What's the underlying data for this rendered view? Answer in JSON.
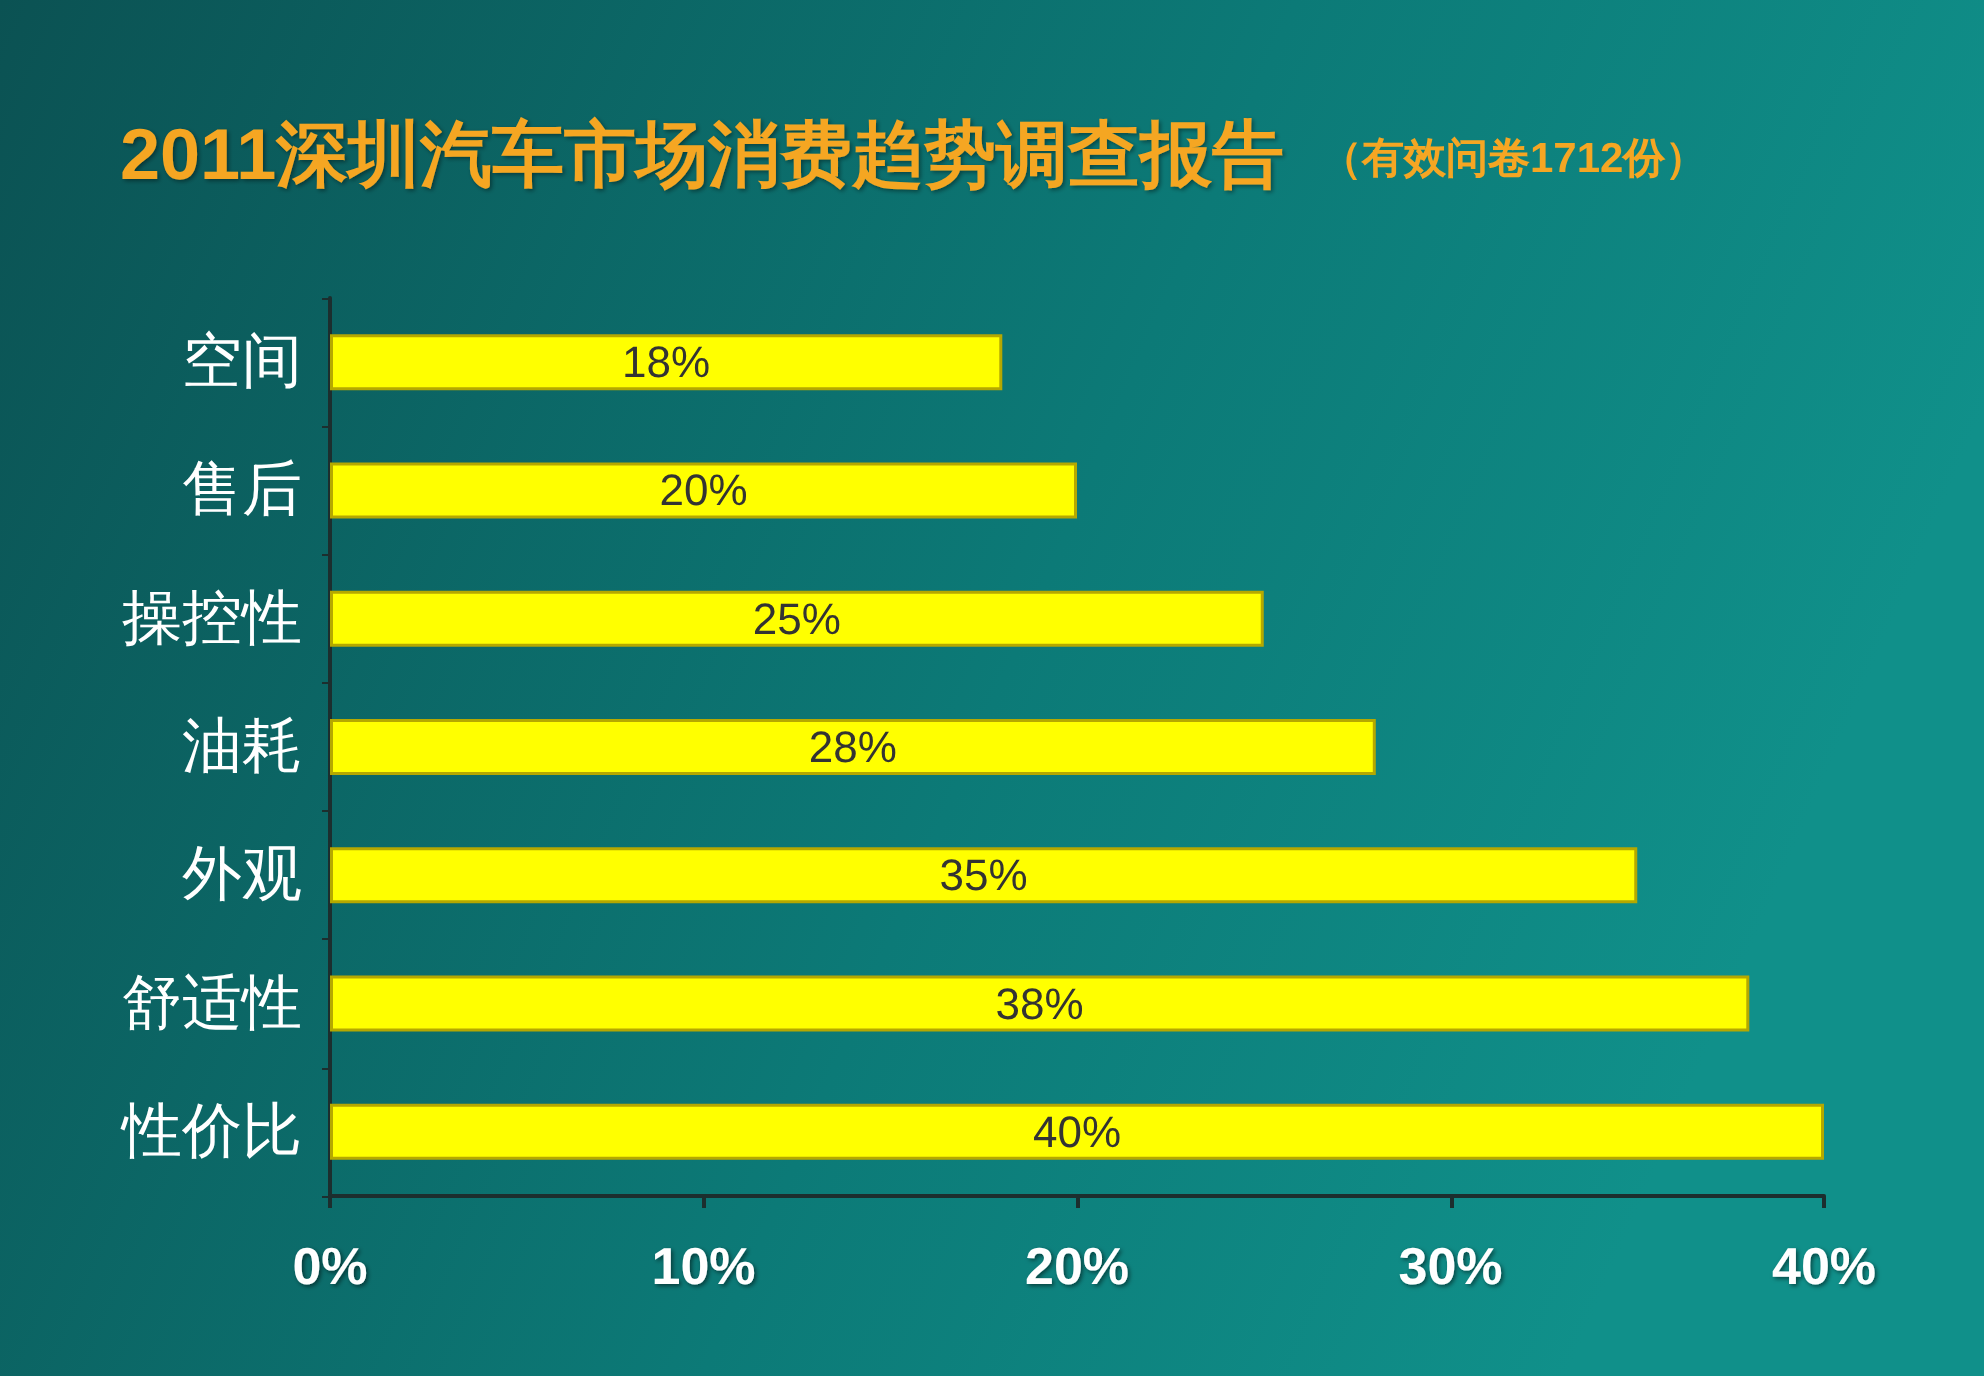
{
  "chart_data": {
    "type": "bar",
    "orientation": "horizontal",
    "title": "2011深圳汽车市场消费趋势调查报告",
    "subtitle": "（有效问卷1712份）",
    "categories": [
      "空间",
      "售后",
      "操控性",
      "油耗",
      "外观",
      "舒适性",
      "性价比"
    ],
    "values": [
      18,
      20,
      25,
      28,
      35,
      38,
      40
    ],
    "value_labels": [
      "18%",
      "20%",
      "25%",
      "28%",
      "35%",
      "38%",
      "40%"
    ],
    "color": "#ffff00",
    "xlim": [
      0,
      40
    ],
    "xticks": [
      {
        "value": 0,
        "label": "0%"
      },
      {
        "value": 10,
        "label": "10%"
      },
      {
        "value": 20,
        "label": "20%"
      },
      {
        "value": 30,
        "label": "30%"
      },
      {
        "value": 40,
        "label": "40%"
      }
    ],
    "grid": false
  }
}
